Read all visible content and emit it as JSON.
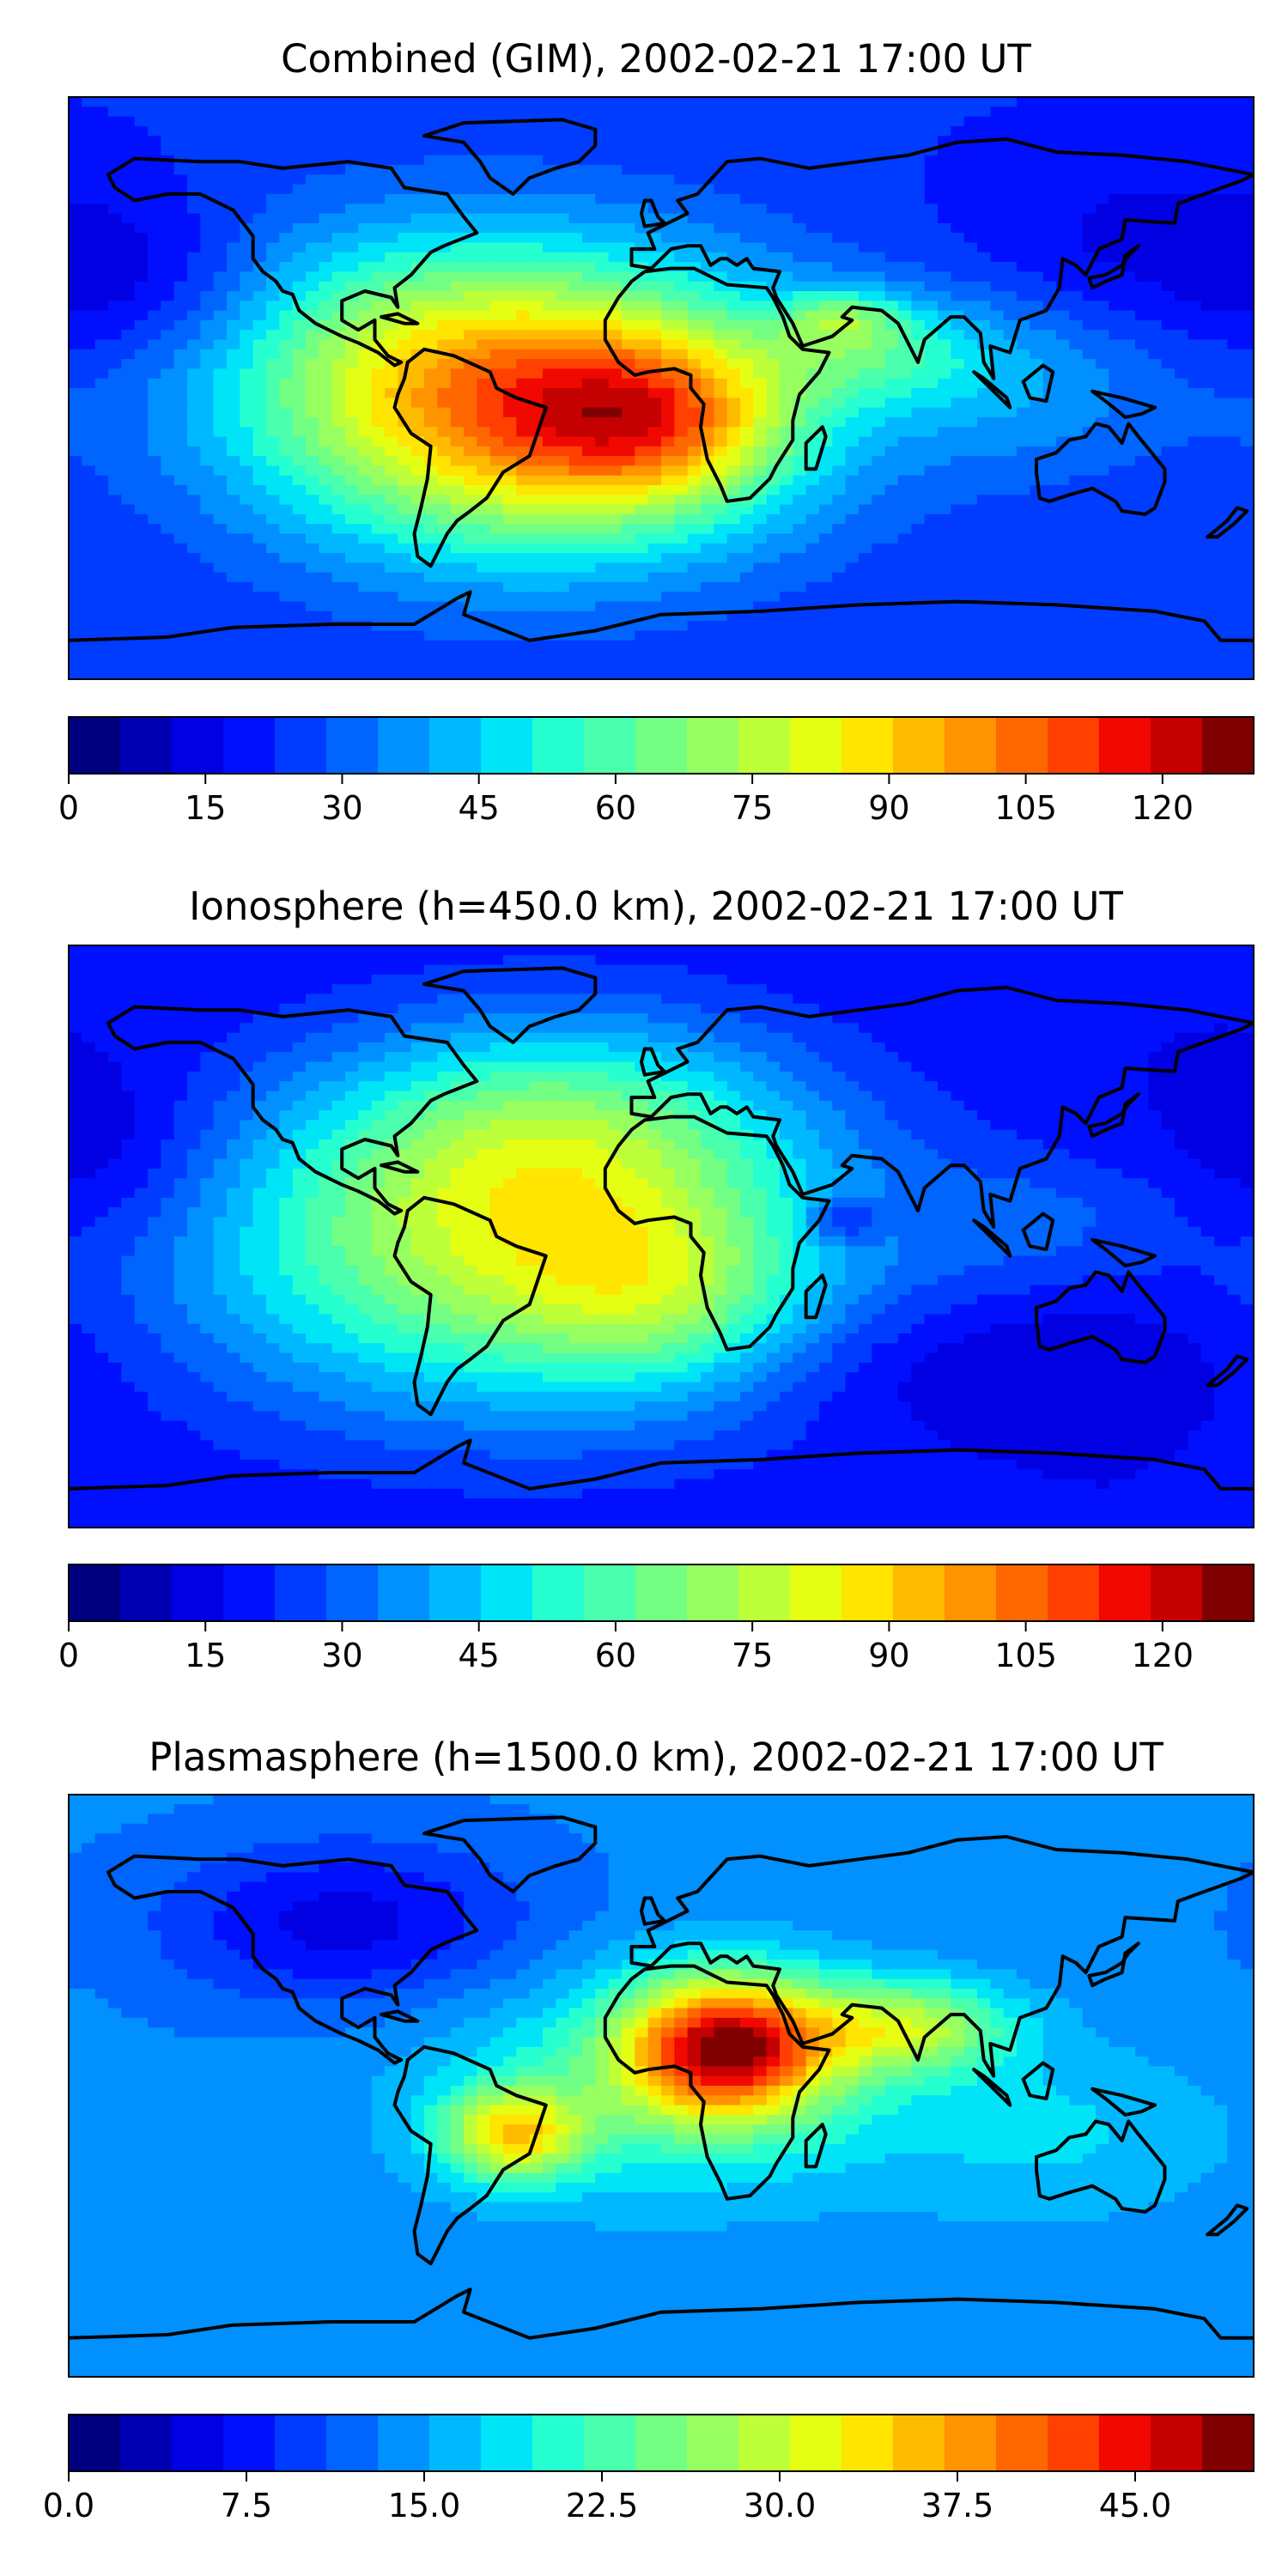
{
  "colors": {
    "cmap": [
      "#00007f",
      "#0000b2",
      "#0000e3",
      "#0010ff",
      "#003cff",
      "#0064ff",
      "#0090ff",
      "#00b8ff",
      "#00e4f8",
      "#26ffd0",
      "#4affad",
      "#73ff83",
      "#97ff60",
      "#bdff39",
      "#e4ff13",
      "#ffe500",
      "#ffbb00",
      "#ff9300",
      "#ff6800",
      "#ff4000",
      "#f10800",
      "#c40000",
      "#7f0000"
    ]
  },
  "chart_data": [
    {
      "type": "heatmap",
      "title": "Combined (GIM), 2002-02-21 17:00 UT",
      "xlabel": "",
      "ylabel": "",
      "lon_range": [
        -180,
        180
      ],
      "lat_range": [
        -90,
        90
      ],
      "colorbar": {
        "range": [
          0,
          130
        ],
        "levels": 23,
        "ticks": [
          0,
          15,
          30,
          45,
          60,
          75,
          90,
          105,
          120
        ],
        "tick_labels": [
          "0",
          "15",
          "30",
          "45",
          "60",
          "75",
          "90",
          "105",
          "120"
        ]
      },
      "field": {
        "background": 23,
        "features": [
          {
            "lon": -40,
            "lat": -12,
            "amp": 62,
            "slon": 55,
            "slat": 30
          },
          {
            "lon": 0,
            "lat": -10,
            "amp": 35,
            "slon": 28,
            "slat": 18
          },
          {
            "lon": -60,
            "lat": 15,
            "amp": 30,
            "slon": 60,
            "slat": 28
          },
          {
            "lon": 65,
            "lat": 12,
            "amp": 22,
            "slon": 26,
            "slat": 12
          },
          {
            "lon": 55,
            "lat": 22,
            "amp": 20,
            "slon": 12,
            "slat": 6
          },
          {
            "lon": 110,
            "lat": 0,
            "amp": 14,
            "slon": 35,
            "slat": 20
          },
          {
            "lon": -160,
            "lat": 30,
            "amp": -12,
            "slon": 30,
            "slat": 18
          },
          {
            "lon": 150,
            "lat": 45,
            "amp": -8,
            "slon": 40,
            "slat": 20
          }
        ]
      }
    },
    {
      "type": "heatmap",
      "title": "Ionosphere  (h=450.0 km), 2002-02-21 17:00 UT",
      "xlabel": "",
      "ylabel": "",
      "lon_range": [
        -180,
        180
      ],
      "lat_range": [
        -90,
        90
      ],
      "colorbar": {
        "range": [
          0,
          130
        ],
        "levels": 23,
        "ticks": [
          0,
          15,
          30,
          45,
          60,
          75,
          90,
          105,
          120
        ],
        "tick_labels": [
          "0",
          "15",
          "30",
          "45",
          "60",
          "75",
          "90",
          "105",
          "120"
        ]
      },
      "field": {
        "background": 17,
        "features": [
          {
            "lon": -45,
            "lat": -5,
            "amp": 55,
            "slon": 70,
            "slat": 35
          },
          {
            "lon": -30,
            "lat": 35,
            "amp": 30,
            "slon": 50,
            "slat": 25
          },
          {
            "lon": 0,
            "lat": -20,
            "amp": 20,
            "slon": 30,
            "slat": 20
          },
          {
            "lon": 55,
            "lat": 5,
            "amp": -18,
            "slon": 8,
            "slat": 5
          },
          {
            "lon": 120,
            "lat": 5,
            "amp": 10,
            "slon": 30,
            "slat": 15
          },
          {
            "lon": -170,
            "lat": 25,
            "amp": -10,
            "slon": 25,
            "slat": 20
          },
          {
            "lon": 90,
            "lat": -40,
            "amp": -8,
            "slon": 60,
            "slat": 15
          }
        ]
      }
    },
    {
      "type": "heatmap",
      "title": "Plasmasphere (h=1500.0 km), 2002-02-21 17:00 UT",
      "xlabel": "",
      "ylabel": "",
      "lon_range": [
        -180,
        180
      ],
      "lat_range": [
        -90,
        90
      ],
      "colorbar": {
        "range": [
          0,
          50
        ],
        "levels": 23,
        "ticks": [
          0,
          7.5,
          15,
          22.5,
          30,
          37.5,
          45
        ],
        "tick_labels": [
          "0.0",
          "7.5",
          "15.0",
          "22.5",
          "30.0",
          "37.5",
          "45.0"
        ]
      },
      "field": {
        "background": 13.5,
        "features": [
          {
            "lon": 20,
            "lat": 12,
            "amp": 30,
            "slon": 22,
            "slat": 15
          },
          {
            "lon": -45,
            "lat": -15,
            "amp": 18,
            "slon": 15,
            "slat": 10
          },
          {
            "lon": 75,
            "lat": 18,
            "amp": 14,
            "slon": 22,
            "slat": 10
          },
          {
            "lon": 0,
            "lat": 0,
            "amp": 8,
            "slon": 50,
            "slat": 25
          },
          {
            "lon": -95,
            "lat": 50,
            "amp": -8,
            "slon": 40,
            "slat": 18
          },
          {
            "lon": 120,
            "lat": -15,
            "amp": 4,
            "slon": 40,
            "slat": 20
          }
        ]
      }
    }
  ]
}
